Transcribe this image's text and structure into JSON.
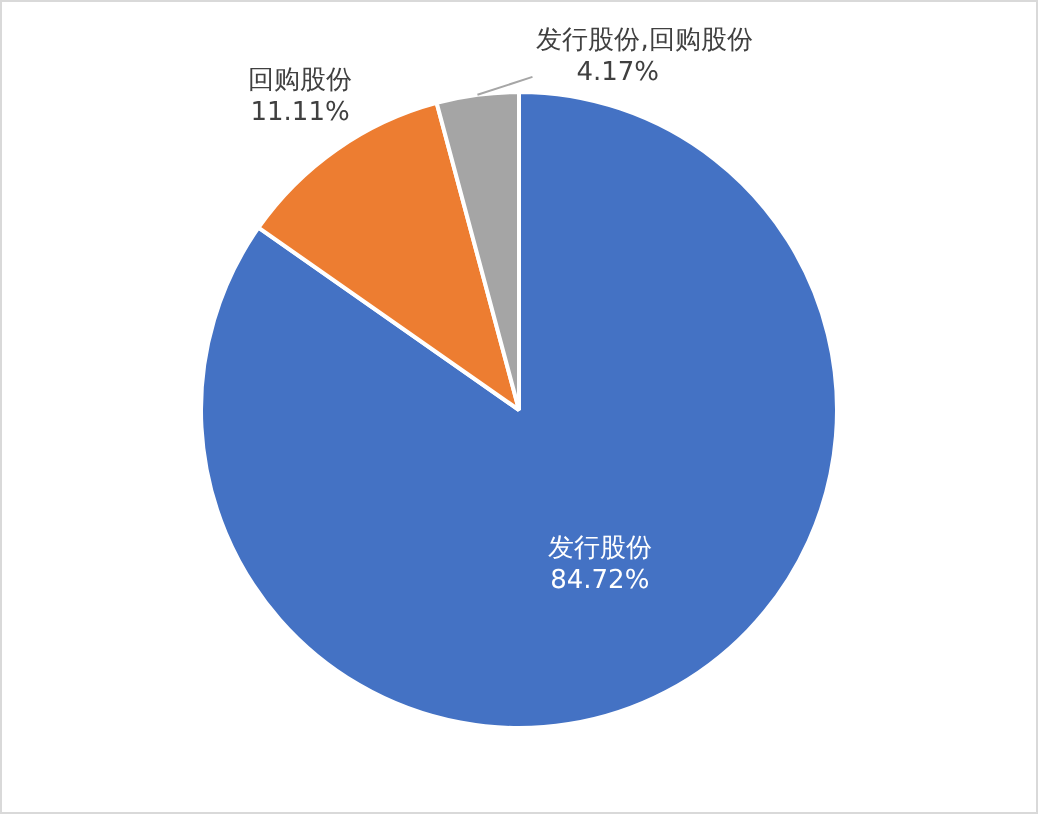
{
  "chart_data": {
    "type": "pie",
    "categories": [
      "发行股份",
      "回购股份",
      "发行股份,回购股份"
    ],
    "values": [
      84.72,
      11.11,
      4.17
    ],
    "colors": [
      "#4472c4",
      "#ed7d31",
      "#a5a5a5"
    ],
    "value_labels": [
      "84.72%",
      "11.11%",
      "4.17%"
    ],
    "legend": false
  }
}
